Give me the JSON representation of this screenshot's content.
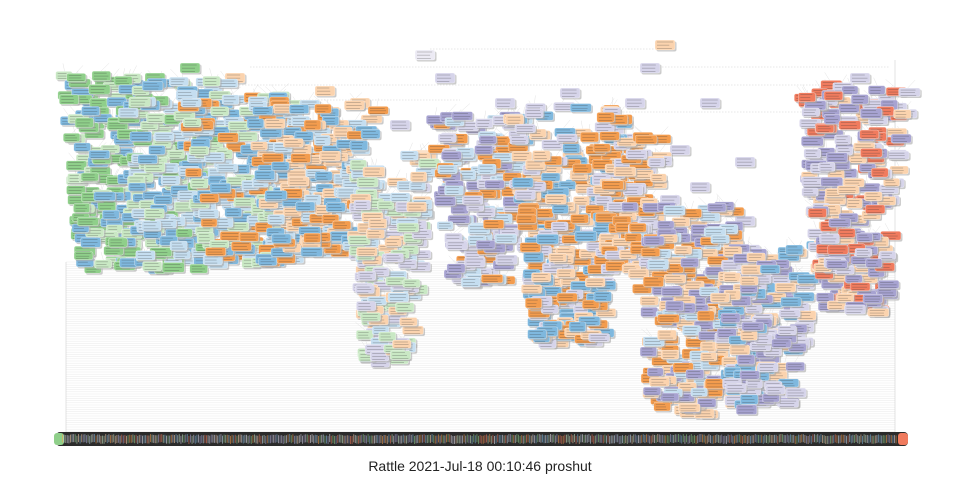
{
  "diagram": {
    "type": "decision-tree",
    "footer_caption": "Rattle 2021-Jul-18 00:10:46 proshut",
    "node_fill_colors": {
      "class_a": "#8fcf8a",
      "class_a_light": "#c9e8c4",
      "class_b": "#f39c4e",
      "class_b_light": "#fbd3ae",
      "class_c": "#a7a3d1",
      "class_c_light": "#d6d4ea",
      "class_d": "#7fb8de",
      "class_d_light": "#c5def0",
      "class_e": "#f07b5e",
      "neutral": "#eceaf4"
    },
    "edge_color": "#cfcfcf",
    "leaf_bar_color": "#2b2b2b",
    "node_shadow_color": "#a9a9a9"
  }
}
